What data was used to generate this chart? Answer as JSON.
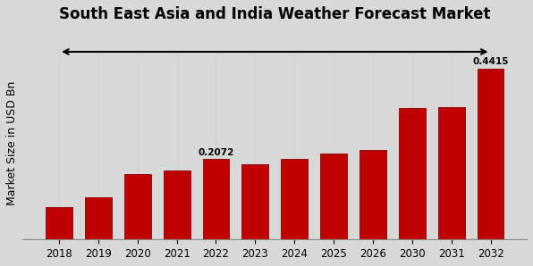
{
  "title": "South East Asia and India Weather Forecast Market",
  "ylabel": "Market Size in USD Bn",
  "categories": [
    "2018",
    "2019",
    "2020",
    "2021",
    "2022",
    "2023",
    "2024",
    "2025",
    "2026",
    "2030",
    "2031",
    "2032"
  ],
  "values": [
    0.083,
    0.108,
    0.168,
    0.178,
    0.2072,
    0.195,
    0.208,
    0.222,
    0.232,
    0.34,
    0.343,
    0.4415
  ],
  "bar_color": "#C00000",
  "bar_edge_color": "#8B0000",
  "background_color": "#D8D8D8",
  "title_fontsize": 12,
  "ylabel_fontsize": 9,
  "annotation_2022": "0.2072",
  "annotation_2032": "0.4415",
  "ylim": [
    0,
    0.5
  ]
}
